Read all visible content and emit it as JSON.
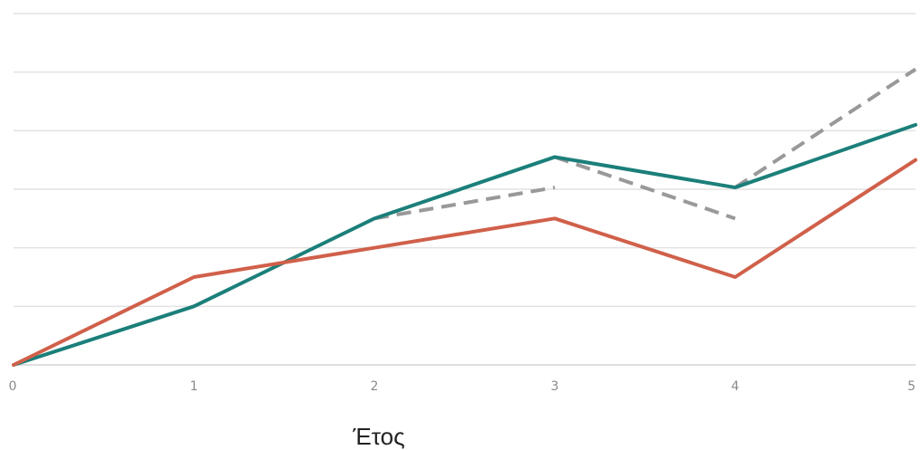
{
  "chart_data": {
    "type": "line",
    "xlabel": "Έτος",
    "ylabel": "",
    "x": [
      0,
      1,
      2,
      3,
      4,
      5
    ],
    "ylim": [
      0,
      6
    ],
    "grid": true,
    "series": [
      {
        "color": "#1b7f7a",
        "style": "solid",
        "points": [
          [
            0,
            0
          ],
          [
            1,
            1
          ],
          [
            2,
            2.5
          ],
          [
            3,
            3.55
          ],
          [
            4,
            3.03
          ],
          [
            5,
            4.1
          ]
        ]
      },
      {
        "color": "#d0604a",
        "style": "solid",
        "points": [
          [
            0,
            0
          ],
          [
            1,
            1.5
          ],
          [
            2,
            2.0
          ],
          [
            3,
            2.5
          ],
          [
            4,
            1.5
          ],
          [
            5,
            3.5
          ]
        ]
      },
      {
        "color": "#999999",
        "style": "dashed",
        "points": [
          [
            2,
            2.5
          ],
          [
            3,
            3.03
          ]
        ]
      },
      {
        "color": "#999999",
        "style": "dashed",
        "points": [
          [
            3,
            3.55
          ],
          [
            4,
            2.5
          ]
        ]
      },
      {
        "color": "#999999",
        "style": "dashed",
        "points": [
          [
            4,
            3.03
          ],
          [
            5,
            5.05
          ]
        ]
      }
    ]
  }
}
